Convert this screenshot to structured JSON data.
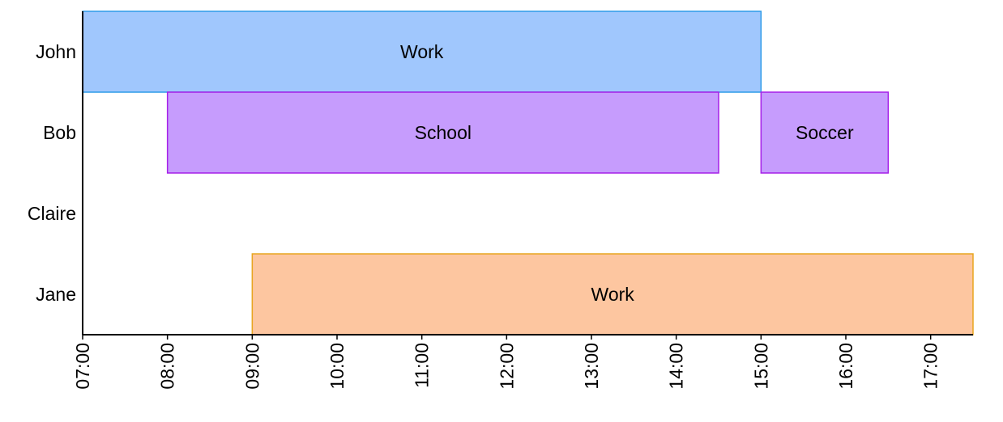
{
  "chart_data": {
    "type": "timeline",
    "title": "",
    "xlabel": "",
    "ylabel": "",
    "rows": [
      "John",
      "Bob",
      "Claire",
      "Jane"
    ],
    "x_ticks": [
      "07:00",
      "08:00",
      "09:00",
      "10:00",
      "11:00",
      "12:00",
      "13:00",
      "14:00",
      "15:00",
      "16:00",
      "17:00"
    ],
    "x_range": [
      "07:00",
      "17:30"
    ],
    "grid": false,
    "legend": "none",
    "tasks": [
      {
        "row": "John",
        "label": "Work",
        "start": "07:00",
        "end": "15:00",
        "color": "#a0c7fd",
        "border": "#2e9be8"
      },
      {
        "row": "Bob",
        "label": "School",
        "start": "08:00",
        "end": "14:30",
        "color": "#c69cfd",
        "border": "#a51fe8"
      },
      {
        "row": "Bob",
        "label": "Soccer",
        "start": "15:00",
        "end": "16:30",
        "color": "#c69cfd",
        "border": "#a51fe8"
      },
      {
        "row": "Jane",
        "label": "Work",
        "start": "09:00",
        "end": "17:30",
        "color": "#fdc6a0",
        "border": "#e8a51f"
      }
    ]
  }
}
